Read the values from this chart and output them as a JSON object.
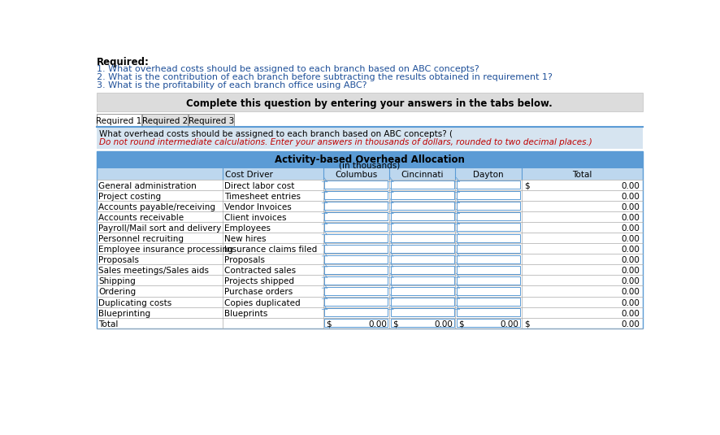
{
  "required_header": "Required:",
  "required_items": [
    "1. What overhead costs should be assigned to each branch based on ABC concepts?",
    "2. What is the contribution of each branch before subtracting the results obtained in requirement 1?",
    "3. What is the profitability of each branch office using ABC?"
  ],
  "complete_text": "Complete this question by entering your answers in the tabs below.",
  "tabs": [
    "Required 1",
    "Required 2",
    "Required 3"
  ],
  "instruction_black": "What overhead costs should be assigned to each branch based on ABC concepts? (",
  "instruction_red": "Do not round intermediate calculations. Enter your answers in thousands of dollars, rounded to two decimal places.",
  "instruction_black2": ")",
  "table_title_line1": "Activity-based Overhead Allocation",
  "table_title_line2": "(in thousands)",
  "col_headers": [
    "",
    "Cost Driver",
    "Columbus",
    "Cincinnati",
    "Dayton",
    "Total"
  ],
  "rows": [
    [
      "General administration",
      "Direct labor cost",
      "",
      "",
      "",
      "0.00"
    ],
    [
      "Project costing",
      "Timesheet entries",
      "",
      "",
      "",
      "0.00"
    ],
    [
      "Accounts payable/receiving",
      "Vendor Invoices",
      "",
      "",
      "",
      "0.00"
    ],
    [
      "Accounts receivable",
      "Client invoices",
      "",
      "",
      "",
      "0.00"
    ],
    [
      "Payroll/Mail sort and delivery",
      "Employees",
      "",
      "",
      "",
      "0.00"
    ],
    [
      "Personnel recruiting",
      "New hires",
      "",
      "",
      "",
      "0.00"
    ],
    [
      "Employee insurance processing",
      "Insurance claims filed",
      "",
      "",
      "",
      "0.00"
    ],
    [
      "Proposals",
      "Proposals",
      "",
      "",
      "",
      "0.00"
    ],
    [
      "Sales meetings/Sales aids",
      "Contracted sales",
      "",
      "",
      "",
      "0.00"
    ],
    [
      "Shipping",
      "Projects shipped",
      "",
      "",
      "",
      "0.00"
    ],
    [
      "Ordering",
      "Purchase orders",
      "",
      "",
      "",
      "0.00"
    ],
    [
      "Duplicating costs",
      "Copies duplicated",
      "",
      "",
      "",
      "0.00"
    ],
    [
      "Blueprinting",
      "Blueprints",
      "",
      "",
      "",
      "0.00"
    ],
    [
      "Total",
      "",
      "0.00",
      "0.00",
      "0.00",
      "0.00"
    ]
  ],
  "color_header_blue": "#5B9BD5",
  "color_subheader_blue": "#BDD7EE",
  "color_instruction_bg": "#D6E4F0",
  "color_gray_box": "#DCDCDC",
  "color_tab_border": "#999999",
  "color_row_line": "#AAAAAA",
  "color_blue_text": "#1F5099",
  "color_red_text": "#C00000"
}
